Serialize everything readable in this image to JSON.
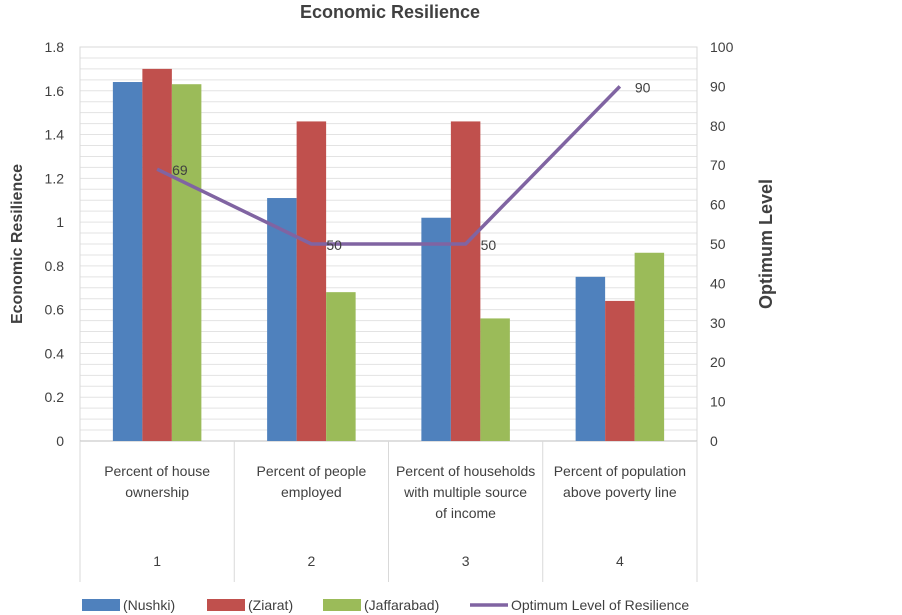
{
  "chart_data": {
    "type": "bar",
    "title": "Economic Resilience",
    "ylabel": "Economic Resilience",
    "y2label": "Optimum Level",
    "ylim": [
      0,
      1.8
    ],
    "y2lim": [
      0,
      100
    ],
    "yticks": [
      "0",
      "0.2",
      "0.4",
      "0.6",
      "0.8",
      "1",
      "1.2",
      "1.4",
      "1.6",
      "1.8"
    ],
    "y2ticks": [
      "0",
      "10",
      "20",
      "30",
      "40",
      "50",
      "60",
      "70",
      "80",
      "90",
      "100"
    ],
    "categories": [
      {
        "label": [
          "Percent of house",
          "ownership"
        ],
        "number": "1"
      },
      {
        "label": [
          "Percent of people",
          "employed"
        ],
        "number": "2"
      },
      {
        "label": [
          "Percent of households",
          "with multiple source",
          "of income"
        ],
        "number": "3"
      },
      {
        "label": [
          "Percent of population",
          "above poverty line"
        ],
        "number": "4"
      }
    ],
    "series": [
      {
        "name": "(Nushki)",
        "type": "bar",
        "axis": "left",
        "color": "#4f81bd",
        "values": [
          1.64,
          1.11,
          1.02,
          0.75
        ]
      },
      {
        "name": "(Ziarat)",
        "type": "bar",
        "axis": "left",
        "color": "#c0504d",
        "values": [
          1.7,
          1.46,
          1.46,
          0.64
        ]
      },
      {
        "name": "(Jaffarabad)",
        "type": "bar",
        "axis": "left",
        "color": "#9bbb59",
        "values": [
          1.63,
          0.68,
          0.56,
          0.86
        ]
      },
      {
        "name": "Optimum Level of Resilience",
        "type": "line",
        "axis": "right",
        "color": "#8064a2",
        "values": [
          69,
          50,
          50,
          90
        ],
        "data_labels": [
          "69",
          "50",
          "50",
          "90"
        ]
      }
    ],
    "grid": true,
    "legend": "bottom"
  }
}
